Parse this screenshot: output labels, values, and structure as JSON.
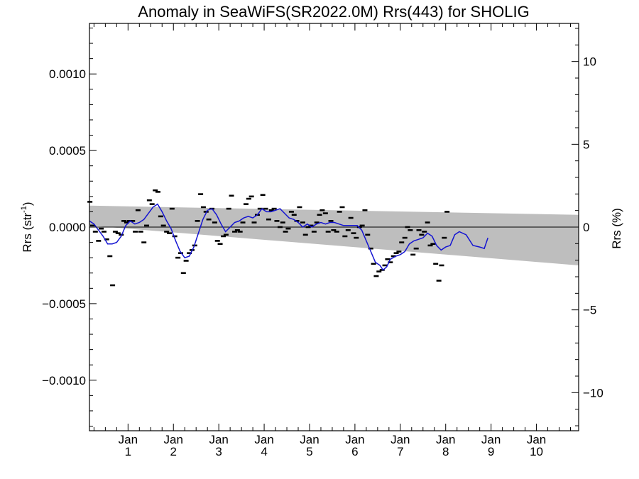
{
  "chart_data": {
    "type": "line",
    "title": "Anomaly in SeaWiFS(SR2022.0M) Rrs(443) for SHOLIG",
    "ylabel_left": "Rrs (str",
    "ylabel_left_sup": "-1",
    "ylabel_left_close": ")",
    "ylabel_right": "Rrs (%)",
    "ylim": [
      -0.00133,
      0.00133
    ],
    "ylim_right": [
      -12.3,
      12.3
    ],
    "xlim": [
      0.15,
      10.93
    ],
    "y_ticks": [
      {
        "value": 0.001,
        "label": "0.0010"
      },
      {
        "value": 0.0005,
        "label": "0.0005"
      },
      {
        "value": 0.0,
        "label": "0.0000"
      },
      {
        "value": -0.0005,
        "label": "−0.0005"
      },
      {
        "value": -0.001,
        "label": "−0.0010"
      }
    ],
    "y_ticks_right": [
      {
        "value": 10,
        "label": "10"
      },
      {
        "value": 5,
        "label": "5"
      },
      {
        "value": 0,
        "label": "0"
      },
      {
        "value": -5,
        "label": "−5"
      },
      {
        "value": -10,
        "label": "−10"
      }
    ],
    "x_ticks": [
      {
        "value": 1,
        "month": "Jan",
        "year": "1"
      },
      {
        "value": 2,
        "month": "Jan",
        "year": "2"
      },
      {
        "value": 3,
        "month": "Jan",
        "year": "3"
      },
      {
        "value": 4,
        "month": "Jan",
        "year": "4"
      },
      {
        "value": 5,
        "month": "Jan",
        "year": "5"
      },
      {
        "value": 6,
        "month": "Jan",
        "year": "6"
      },
      {
        "value": 7,
        "month": "Jan",
        "year": "7"
      },
      {
        "value": 8,
        "month": "Jan",
        "year": "8"
      },
      {
        "value": 9,
        "month": "Jan",
        "year": "9"
      },
      {
        "value": 10,
        "month": "Jan",
        "year": "10"
      }
    ],
    "band": {
      "x": [
        0.15,
        10.93
      ],
      "upper": [
        0.00014,
        8e-05
      ],
      "lower": [
        1e-05,
        -0.00025
      ],
      "color": "#bebebe"
    },
    "zero_line": 0.0,
    "series": [
      {
        "kind": "points",
        "color": "#000000",
        "points": [
          [
            0.16,
            0.000165
          ],
          [
            0.22,
            1e-05
          ],
          [
            0.28,
            -3e-05
          ],
          [
            0.35,
            -9e-05
          ],
          [
            0.41,
            -1e-05
          ],
          [
            0.47,
            -3e-05
          ],
          [
            0.53,
            -8e-05
          ],
          [
            0.6,
            -0.00019
          ],
          [
            0.66,
            -0.00038
          ],
          [
            0.72,
            -3e-05
          ],
          [
            0.78,
            -4e-05
          ],
          [
            0.85,
            -5e-05
          ],
          [
            0.91,
            4e-05
          ],
          [
            0.97,
            3e-05
          ],
          [
            1.03,
            4e-05
          ],
          [
            1.1,
            4e-05
          ],
          [
            1.16,
            -3e-05
          ],
          [
            1.22,
            0.00011
          ],
          [
            1.28,
            -3e-05
          ],
          [
            1.35,
            -0.0001
          ],
          [
            1.41,
            1e-05
          ],
          [
            1.47,
            0.000175
          ],
          [
            1.53,
            0.00015
          ],
          [
            1.6,
            0.00024
          ],
          [
            1.66,
            0.00023
          ],
          [
            1.72,
            7e-05
          ],
          [
            1.78,
            1e-05
          ],
          [
            1.85,
            -3e-05
          ],
          [
            1.91,
            -4e-05
          ],
          [
            1.97,
            0.00012
          ],
          [
            2.03,
            -6e-05
          ],
          [
            2.1,
            -0.0002
          ],
          [
            2.16,
            -0.00017
          ],
          [
            2.22,
            -0.0003
          ],
          [
            2.28,
            -0.00022
          ],
          [
            2.35,
            -0.00017
          ],
          [
            2.41,
            -0.00015
          ],
          [
            2.47,
            -0.00012
          ],
          [
            2.53,
            4e-05
          ],
          [
            2.6,
            0.000215
          ],
          [
            2.66,
            0.00013
          ],
          [
            2.72,
            0.0001
          ],
          [
            2.78,
            5e-05
          ],
          [
            2.85,
            0.00012
          ],
          [
            2.91,
            3e-05
          ],
          [
            2.97,
            -9e-05
          ],
          [
            3.03,
            -0.00011
          ],
          [
            3.1,
            -6e-05
          ],
          [
            3.16,
            -5e-05
          ],
          [
            3.22,
            0.00012
          ],
          [
            3.28,
            0.000205
          ],
          [
            3.35,
            -3e-05
          ],
          [
            3.41,
            -2e-05
          ],
          [
            3.47,
            -3e-05
          ],
          [
            3.53,
            3e-05
          ],
          [
            3.6,
            0.00015
          ],
          [
            3.66,
            0.000185
          ],
          [
            3.72,
            0.0002
          ],
          [
            3.78,
            3e-05
          ],
          [
            3.85,
            8e-05
          ],
          [
            3.91,
            0.00012
          ],
          [
            3.97,
            0.00021
          ],
          [
            4.03,
            0.00012
          ],
          [
            4.1,
            5e-05
          ],
          [
            4.16,
            0.00011
          ],
          [
            4.22,
            0.00012
          ],
          [
            4.28,
            4e-05
          ],
          [
            4.35,
            0.0
          ],
          [
            4.41,
            3e-05
          ],
          [
            4.47,
            -3e-05
          ],
          [
            4.53,
            -1e-05
          ],
          [
            4.6,
            0.0001
          ],
          [
            4.66,
            8e-05
          ],
          [
            4.72,
            4e-05
          ],
          [
            4.78,
            0.00013
          ],
          [
            4.85,
            3e-05
          ],
          [
            4.91,
            -5e-05
          ],
          [
            4.97,
            0.0
          ],
          [
            5.03,
            1e-05
          ],
          [
            5.1,
            -3e-05
          ],
          [
            5.16,
            3e-05
          ],
          [
            5.22,
            8e-05
          ],
          [
            5.28,
            0.00011
          ],
          [
            5.35,
            9e-05
          ],
          [
            5.41,
            -3e-05
          ],
          [
            5.47,
            4e-05
          ],
          [
            5.53,
            -2e-05
          ],
          [
            5.6,
            -3e-05
          ],
          [
            5.66,
            0.0001
          ],
          [
            5.72,
            0.00013
          ],
          [
            5.78,
            -6e-05
          ],
          [
            5.85,
            -2e-05
          ],
          [
            5.91,
            6e-05
          ],
          [
            5.97,
            -4e-05
          ],
          [
            6.03,
            -7e-05
          ],
          [
            6.1,
            0.0
          ],
          [
            6.16,
            1e-05
          ],
          [
            6.22,
            0.00011
          ],
          [
            6.28,
            -5e-05
          ],
          [
            6.35,
            -0.00014
          ],
          [
            6.41,
            -0.00024
          ],
          [
            6.47,
            -0.00032
          ],
          [
            6.53,
            -0.00029
          ],
          [
            6.6,
            -0.00028
          ],
          [
            6.66,
            -0.00025
          ],
          [
            6.72,
            -0.00021
          ],
          [
            6.78,
            -0.00023
          ],
          [
            6.85,
            -0.00019
          ],
          [
            6.91,
            -0.00017
          ],
          [
            6.97,
            -0.00016
          ],
          [
            7.03,
            -0.0001
          ],
          [
            7.1,
            -7e-05
          ],
          [
            7.16,
            0.0
          ],
          [
            7.22,
            -2e-05
          ],
          [
            7.28,
            -0.00018
          ],
          [
            7.35,
            -0.00014
          ],
          [
            7.41,
            -2e-05
          ],
          [
            7.47,
            -5e-05
          ],
          [
            7.53,
            -3e-05
          ],
          [
            7.6,
            3e-05
          ],
          [
            7.66,
            -0.00012
          ],
          [
            7.72,
            -0.00011
          ],
          [
            7.78,
            -0.00024
          ],
          [
            7.85,
            -0.00035
          ],
          [
            7.91,
            -0.00025
          ],
          [
            7.97,
            -7e-05
          ],
          [
            8.03,
            0.0001
          ]
        ]
      },
      {
        "kind": "line",
        "color": "#1414d2",
        "points": [
          [
            0.15,
            4e-05
          ],
          [
            0.25,
            2e-05
          ],
          [
            0.35,
            -2e-05
          ],
          [
            0.45,
            -6e-05
          ],
          [
            0.55,
            -0.00011
          ],
          [
            0.65,
            -0.00011
          ],
          [
            0.75,
            -0.0001
          ],
          [
            0.85,
            -6e-05
          ],
          [
            0.95,
            1e-05
          ],
          [
            1.05,
            4e-05
          ],
          [
            1.15,
            2e-05
          ],
          [
            1.25,
            3e-05
          ],
          [
            1.35,
            5e-05
          ],
          [
            1.45,
            9e-05
          ],
          [
            1.55,
            0.00013
          ],
          [
            1.65,
            0.00015
          ],
          [
            1.75,
            0.0001
          ],
          [
            1.85,
            4e-05
          ],
          [
            1.95,
            -1e-05
          ],
          [
            2.05,
            -9e-05
          ],
          [
            2.15,
            -0.00016
          ],
          [
            2.25,
            -0.0002
          ],
          [
            2.35,
            -0.00019
          ],
          [
            2.45,
            -0.00013
          ],
          [
            2.55,
            -4e-05
          ],
          [
            2.65,
            5e-05
          ],
          [
            2.75,
            0.00011
          ],
          [
            2.85,
            0.00012
          ],
          [
            2.95,
            8e-05
          ],
          [
            3.05,
            2e-05
          ],
          [
            3.15,
            -3e-05
          ],
          [
            3.25,
            0.0
          ],
          [
            3.35,
            3e-05
          ],
          [
            3.45,
            4e-05
          ],
          [
            3.55,
            6e-05
          ],
          [
            3.65,
            7e-05
          ],
          [
            3.75,
            6e-05
          ],
          [
            3.85,
            8e-05
          ],
          [
            3.95,
            0.00012
          ],
          [
            4.05,
            0.0001
          ],
          [
            4.15,
            0.0001
          ],
          [
            4.25,
            0.00011
          ],
          [
            4.35,
            0.00012
          ],
          [
            4.45,
            9e-05
          ],
          [
            4.55,
            6e-05
          ],
          [
            4.65,
            5e-05
          ],
          [
            4.75,
            3e-05
          ],
          [
            4.85,
            0.0
          ],
          [
            4.95,
            2e-05
          ],
          [
            5.05,
            0.0
          ],
          [
            5.15,
            2e-05
          ],
          [
            5.25,
            3e-05
          ],
          [
            5.35,
            2e-05
          ],
          [
            5.45,
            3e-05
          ],
          [
            5.55,
            3e-05
          ],
          [
            5.65,
            2e-05
          ],
          [
            5.75,
            1e-05
          ],
          [
            5.85,
            1e-05
          ],
          [
            5.95,
            1e-05
          ],
          [
            6.05,
            1e-05
          ],
          [
            6.15,
            -2e-05
          ],
          [
            6.25,
            -9e-05
          ],
          [
            6.35,
            -0.00016
          ],
          [
            6.45,
            -0.00023
          ],
          [
            6.55,
            -0.00025
          ],
          [
            6.62,
            -0.00028
          ],
          [
            6.7,
            -0.00026
          ],
          [
            6.78,
            -0.00021
          ],
          [
            6.9,
            -0.00019
          ],
          [
            7.0,
            -0.00018
          ],
          [
            7.1,
            -0.00016
          ],
          [
            7.2,
            -0.00011
          ],
          [
            7.3,
            -9e-05
          ],
          [
            7.4,
            -8e-05
          ],
          [
            7.5,
            -7e-05
          ],
          [
            7.6,
            -4e-05
          ],
          [
            7.7,
            -6e-05
          ],
          [
            7.8,
            -0.00012
          ],
          [
            7.9,
            -0.00015
          ],
          [
            8.0,
            -0.00013
          ],
          [
            8.1,
            -0.00012
          ],
          [
            8.2,
            -5e-05
          ],
          [
            8.3,
            -3e-05
          ],
          [
            8.45,
            -5e-05
          ],
          [
            8.6,
            -0.00012
          ],
          [
            8.75,
            -0.00013
          ],
          [
            8.85,
            -0.00014
          ],
          [
            8.93,
            -7e-05
          ]
        ]
      }
    ],
    "grid": false,
    "legend": "none"
  }
}
